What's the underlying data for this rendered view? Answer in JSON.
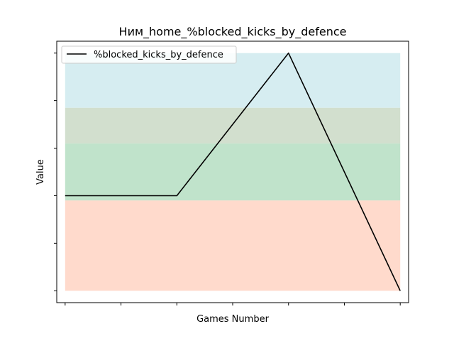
{
  "chart_data": {
    "type": "line",
    "title": "Ним_home_%blocked_kicks_by_defence",
    "xlabel": "Games Number",
    "ylabel": "Value",
    "x": [
      0,
      1,
      2,
      3,
      4,
      5,
      6
    ],
    "x_ticks": [
      0,
      1,
      2,
      3,
      4,
      5,
      6
    ],
    "y_ticks": [
      0,
      1,
      2,
      3,
      4,
      5
    ],
    "tick_labels_shown": false,
    "xlim": [
      -0.15,
      6.15
    ],
    "ylim": [
      -0.25,
      5.25
    ],
    "series": [
      {
        "name": "%blocked_kicks_by_defence",
        "color": "#000000",
        "points": [
          [
            0,
            2
          ],
          [
            2,
            2
          ],
          [
            4,
            5
          ],
          [
            6,
            0
          ]
        ]
      }
    ],
    "bands": [
      {
        "from": 0.0,
        "to": 1.9,
        "color": "#ffdacc",
        "name": "red-zone-band"
      },
      {
        "from": 1.9,
        "to": 3.1,
        "color": "#c0e3cb",
        "name": "green-zone-band"
      },
      {
        "from": 3.1,
        "to": 3.85,
        "color": "#d2dfce",
        "name": "mixed-zone-band"
      },
      {
        "from": 3.85,
        "to": 5.0,
        "color": "#d6edf1",
        "name": "blue-zone-band"
      }
    ],
    "grid": false,
    "legend": {
      "position": "top-left",
      "entries": [
        "%blocked_kicks_by_defence"
      ]
    }
  }
}
